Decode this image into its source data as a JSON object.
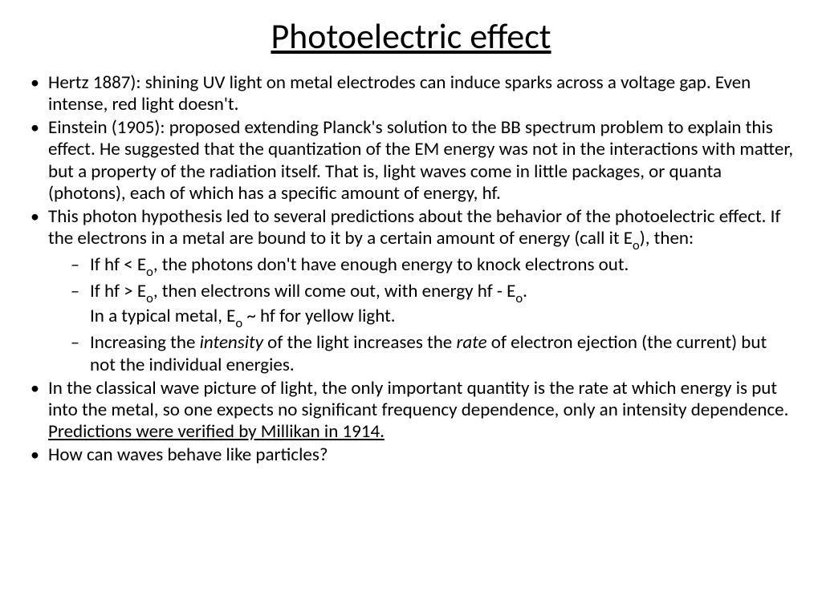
{
  "title": "Photoelectric effect",
  "colors": {
    "background": "#ffffff",
    "text": "#000000"
  },
  "typography": {
    "title_fontsize": 44,
    "body_fontsize": 23,
    "sub_scale": 0.72,
    "line_height": 1.18,
    "font_family": "Calibri"
  },
  "bullets": {
    "b1": "Hertz 1887): shining UV light on metal electrodes can induce sparks across a voltage gap. Even intense, red light doesn't.",
    "b2": "Einstein (1905): proposed extending Planck's solution to the BB spectrum problem to explain this effect.  He suggested that the quantization of the EM energy was not in the interactions with matter, but a property of the radiation itself.  That is, light waves come in little packages, or quanta (photons), each of which has a specific amount of energy, hf.",
    "b3_pre": "This photon hypothesis led to several predictions about the behavior of the photoelectric effect.  If the electrons in a metal are bound to it by a certain amount of energy (call it E",
    "b3_sub": "o",
    "b3_post": "), then:",
    "b3a_1": "If hf < E",
    "b3a_sub1": "o",
    "b3a_2": ", the photons don't have enough energy to knock electrons out.",
    "b3b_1": "If hf > E",
    "b3b_sub1": "o",
    "b3b_2": ", then electrons will come out, with energy hf - E",
    "b3b_sub2": "o",
    "b3b_3": ".",
    "b3b_line2_1": "In a typical metal, E",
    "b3b_line2_sub": "o",
    "b3b_line2_2": " ~ hf for yellow light.",
    "b3c_1": "Increasing the ",
    "b3c_i1": "intensity",
    "b3c_2": " of the light increases the ",
    "b3c_i2": "rate",
    "b3c_3": " of electron ejection (the current) but not the individual energies.",
    "b4_1": "In the classical wave picture of light, the only important quantity is the rate at which energy is put into the metal, so one expects no significant frequency dependence, only an intensity dependence.",
    "b4_ul": "Predictions were verified by Millikan in 1914.",
    "b5": "How can waves behave like particles?"
  }
}
